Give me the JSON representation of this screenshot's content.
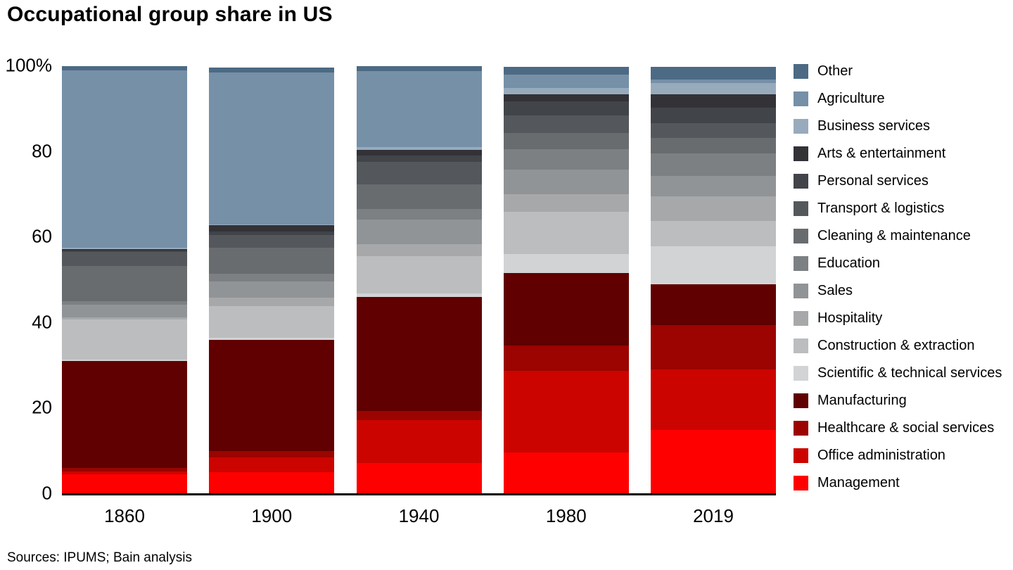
{
  "title": "Occupational group share in US",
  "source_note": "Sources: IPUMS; Bain analysis",
  "y_axis": {
    "ticks": [
      {
        "label": "100%",
        "value": 100
      },
      {
        "label": "80",
        "value": 80
      },
      {
        "label": "60",
        "value": 60
      },
      {
        "label": "40",
        "value": 40
      },
      {
        "label": "20",
        "value": 20
      },
      {
        "label": "0",
        "value": 0
      }
    ]
  },
  "chart_data": {
    "type": "bar",
    "stacked": true,
    "unit": "percent",
    "title": "Occupational group share in US",
    "xlabel": "",
    "ylabel": "",
    "ylim": [
      0,
      100
    ],
    "grid": false,
    "legend_position": "right",
    "categories": [
      "1860",
      "1900",
      "1940",
      "1980",
      "2019"
    ],
    "series": [
      {
        "name": "Other",
        "color": "#4c6a84",
        "values": [
          1.0,
          1.2,
          1.1,
          1.9,
          3.0
        ]
      },
      {
        "name": "Agriculture",
        "color": "#7590a7",
        "values": [
          41.5,
          35.5,
          17.7,
          3.0,
          0.8
        ]
      },
      {
        "name": "Business services",
        "color": "#97abbd",
        "values": [
          0.3,
          0.3,
          0.7,
          1.6,
          2.7
        ]
      },
      {
        "name": "Arts & entertainment",
        "color": "#333237",
        "values": [
          0.4,
          1.4,
          1.4,
          1.6,
          3.0
        ]
      },
      {
        "name": "Personal services",
        "color": "#414449",
        "values": [
          0.3,
          0.8,
          1.4,
          3.3,
          3.6
        ]
      },
      {
        "name": "Transport & logistics",
        "color": "#54575b",
        "values": [
          3.3,
          3.0,
          5.2,
          4.1,
          3.6
        ]
      },
      {
        "name": "Cleaning & maintenance",
        "color": "#696c6f",
        "values": [
          8.2,
          6.0,
          5.8,
          3.8,
          3.6
        ]
      },
      {
        "name": "Education",
        "color": "#7d8083",
        "values": [
          0.8,
          1.9,
          2.5,
          4.7,
          5.2
        ]
      },
      {
        "name": "Sales",
        "color": "#919497",
        "values": [
          3.0,
          3.8,
          5.8,
          5.8,
          4.7
        ]
      },
      {
        "name": "Hospitality",
        "color": "#a6a8aa",
        "values": [
          0.5,
          1.9,
          2.7,
          4.1,
          5.8
        ]
      },
      {
        "name": "Construction & extraction",
        "color": "#bbbdbf",
        "values": [
          9.4,
          7.4,
          8.8,
          9.9,
          6.0
        ]
      },
      {
        "name": "Scientific & technical services",
        "color": "#d2d3d5",
        "values": [
          0.3,
          0.5,
          0.8,
          4.4,
          8.8
        ]
      },
      {
        "name": "Manufacturing",
        "color": "#600000",
        "values": [
          25.0,
          26.1,
          26.7,
          17.0,
          9.6
        ]
      },
      {
        "name": "Healthcare & social services",
        "color": "#9b0400",
        "values": [
          0.8,
          1.4,
          2.1,
          5.8,
          10.4
        ]
      },
      {
        "name": "Office administration",
        "color": "#cc0400",
        "values": [
          0.7,
          3.4,
          10.0,
          19.2,
          14.1
        ]
      },
      {
        "name": "Management",
        "color": "#fe0000",
        "values": [
          4.4,
          5.0,
          7.1,
          9.5,
          14.8
        ]
      }
    ]
  }
}
